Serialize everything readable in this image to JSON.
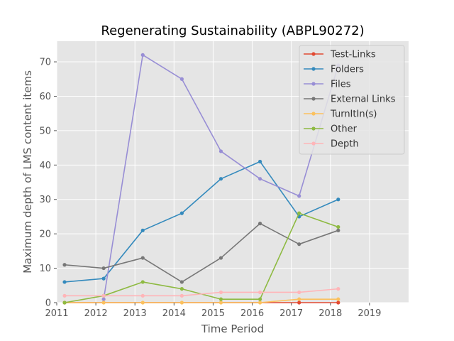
{
  "chart_data": {
    "type": "line",
    "title": "Regenerating Sustainability (ABPL90272)",
    "xlabel": "Time Period",
    "ylabel": "Maximum depth of LMS content items",
    "xlim": [
      2011,
      2020
    ],
    "ylim": [
      0,
      76
    ],
    "xticks": [
      "2011",
      "2012",
      "2013",
      "2014",
      "2015",
      "2016",
      "2017",
      "2018",
      "2019"
    ],
    "yticks": [
      "0",
      "10",
      "20",
      "30",
      "40",
      "50",
      "60",
      "70"
    ],
    "grid": true,
    "legend_position": "top-right",
    "x": [
      2011.2,
      2012.2,
      2013.2,
      2014.2,
      2015.2,
      2016.2,
      2017.2,
      2018.2
    ],
    "series": [
      {
        "name": "Test-Links",
        "color": "#e24a33",
        "values": [
          0,
          null,
          null,
          null,
          null,
          null,
          0,
          0
        ]
      },
      {
        "name": "Folders",
        "color": "#348abd",
        "values": [
          6,
          7,
          21,
          26,
          36,
          41,
          25,
          30
        ]
      },
      {
        "name": "Files",
        "color": "#988ed5",
        "values": [
          null,
          1,
          72,
          65,
          44,
          36,
          31,
          69
        ]
      },
      {
        "name": "External Links",
        "color": "#777777",
        "values": [
          11,
          10,
          13,
          6,
          13,
          23,
          17,
          21
        ]
      },
      {
        "name": "TurnItIn(s)",
        "color": "#fbc15e",
        "values": [
          0,
          0,
          0,
          0,
          0,
          0,
          1,
          1
        ]
      },
      {
        "name": "Other",
        "color": "#8eba42",
        "values": [
          0,
          2,
          6,
          4,
          1,
          1,
          26,
          22
        ]
      },
      {
        "name": "Depth",
        "color": "#ffb5b8",
        "values": [
          2,
          2,
          2,
          2,
          3,
          3,
          3,
          4
        ]
      }
    ]
  }
}
